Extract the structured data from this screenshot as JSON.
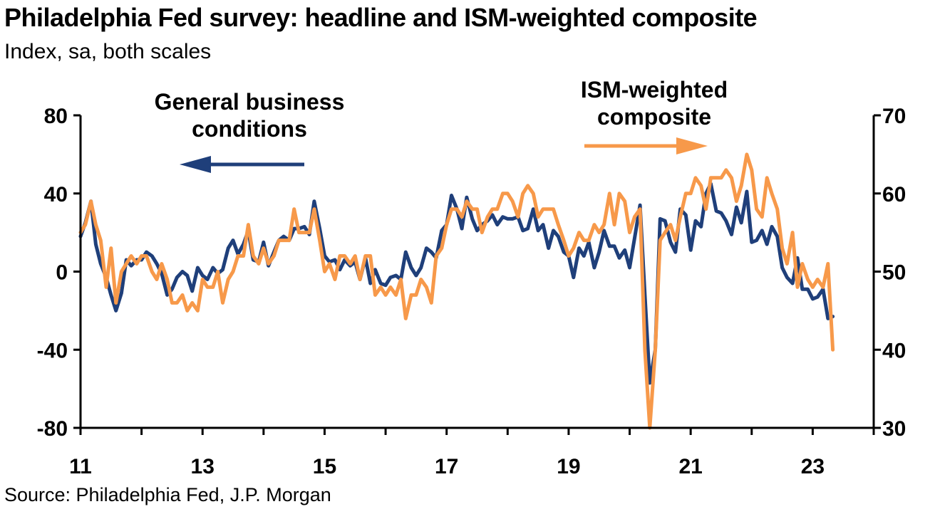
{
  "title": "Philadelphia Fed survey: headline and ISM-weighted composite",
  "subtitle": "Index, sa, both scales",
  "source": "Source: Philadelphia Fed, J.P. Morgan",
  "chart_data": {
    "type": "line",
    "x_unit": "year (20xx)",
    "x_ticks": [
      "11",
      "13",
      "15",
      "17",
      "19",
      "21",
      "23"
    ],
    "xlim": [
      2011,
      2024
    ],
    "y_left": {
      "lim": [
        -80,
        80
      ],
      "ticks": [
        "80",
        "40",
        "0",
        "-40",
        "-80"
      ]
    },
    "y_right": {
      "lim": [
        30,
        70
      ],
      "ticks": [
        "70",
        "60",
        "50",
        "40",
        "30"
      ]
    },
    "annotations": [
      {
        "text": [
          "General business",
          "conditions"
        ],
        "axis": "left"
      },
      {
        "text": [
          "ISM-weighted",
          "composite"
        ],
        "axis": "right"
      }
    ],
    "colors": {
      "general": "#1f3f7a",
      "ism": "#f7994a",
      "axis": "#000000"
    },
    "series": [
      {
        "name": "General business conditions",
        "axis": "left",
        "color": "#1f3f7a",
        "points": [
          [
            2011.0,
            18
          ],
          [
            2011.08,
            25
          ],
          [
            2011.17,
            36
          ],
          [
            2011.25,
            14
          ],
          [
            2011.33,
            4
          ],
          [
            2011.42,
            -3
          ],
          [
            2011.5,
            -12
          ],
          [
            2011.58,
            -20
          ],
          [
            2011.67,
            -11
          ],
          [
            2011.75,
            6
          ],
          [
            2011.83,
            3
          ],
          [
            2011.92,
            6
          ],
          [
            2012.0,
            6
          ],
          [
            2012.08,
            10
          ],
          [
            2012.17,
            8
          ],
          [
            2012.25,
            4
          ],
          [
            2012.33,
            -1
          ],
          [
            2012.42,
            -12
          ],
          [
            2012.5,
            -9
          ],
          [
            2012.58,
            -3
          ],
          [
            2012.67,
            0
          ],
          [
            2012.75,
            -2
          ],
          [
            2012.83,
            -10
          ],
          [
            2012.92,
            2
          ],
          [
            2013.0,
            -2
          ],
          [
            2013.08,
            -4
          ],
          [
            2013.17,
            2
          ],
          [
            2013.25,
            -1
          ],
          [
            2013.33,
            1
          ],
          [
            2013.42,
            12
          ],
          [
            2013.5,
            16
          ],
          [
            2013.58,
            9
          ],
          [
            2013.67,
            14
          ],
          [
            2013.75,
            21
          ],
          [
            2013.83,
            6
          ],
          [
            2013.92,
            5
          ],
          [
            2014.0,
            15
          ],
          [
            2014.08,
            3
          ],
          [
            2014.17,
            10
          ],
          [
            2014.25,
            16
          ],
          [
            2014.33,
            18
          ],
          [
            2014.42,
            16
          ],
          [
            2014.5,
            22
          ],
          [
            2014.58,
            22
          ],
          [
            2014.67,
            23
          ],
          [
            2014.75,
            19
          ],
          [
            2014.83,
            36
          ],
          [
            2014.92,
            22
          ],
          [
            2015.0,
            8
          ],
          [
            2015.08,
            5
          ],
          [
            2015.17,
            6
          ],
          [
            2015.25,
            1
          ],
          [
            2015.33,
            6
          ],
          [
            2015.42,
            3
          ],
          [
            2015.5,
            5
          ],
          [
            2015.58,
            -4
          ],
          [
            2015.67,
            7
          ],
          [
            2015.75,
            -6
          ],
          [
            2015.83,
            1
          ],
          [
            2015.92,
            -6
          ],
          [
            2016.0,
            -7
          ],
          [
            2016.08,
            -3
          ],
          [
            2016.17,
            -2
          ],
          [
            2016.25,
            -4
          ],
          [
            2016.33,
            10
          ],
          [
            2016.42,
            2
          ],
          [
            2016.5,
            -2
          ],
          [
            2016.58,
            2
          ],
          [
            2016.67,
            12
          ],
          [
            2016.75,
            10
          ],
          [
            2016.83,
            7
          ],
          [
            2016.92,
            21
          ],
          [
            2017.0,
            24
          ],
          [
            2017.08,
            39
          ],
          [
            2017.17,
            32
          ],
          [
            2017.25,
            22
          ],
          [
            2017.33,
            38
          ],
          [
            2017.42,
            27
          ],
          [
            2017.5,
            21
          ],
          [
            2017.58,
            24
          ],
          [
            2017.67,
            26
          ],
          [
            2017.75,
            29
          ],
          [
            2017.83,
            24
          ],
          [
            2017.92,
            28
          ],
          [
            2018.0,
            27
          ],
          [
            2018.08,
            27
          ],
          [
            2018.17,
            28
          ],
          [
            2018.25,
            21
          ],
          [
            2018.33,
            22
          ],
          [
            2018.42,
            32
          ],
          [
            2018.5,
            21
          ],
          [
            2018.58,
            24
          ],
          [
            2018.67,
            12
          ],
          [
            2018.75,
            21
          ],
          [
            2018.83,
            18
          ],
          [
            2018.92,
            10
          ],
          [
            2019.0,
            8
          ],
          [
            2019.08,
            -3
          ],
          [
            2019.17,
            12
          ],
          [
            2019.25,
            8
          ],
          [
            2019.33,
            15
          ],
          [
            2019.42,
            2
          ],
          [
            2019.5,
            10
          ],
          [
            2019.58,
            21
          ],
          [
            2019.67,
            13
          ],
          [
            2019.75,
            13
          ],
          [
            2019.83,
            7
          ],
          [
            2019.92,
            11
          ],
          [
            2020.0,
            2
          ],
          [
            2020.08,
            17
          ],
          [
            2020.17,
            34
          ],
          [
            2020.25,
            -12
          ],
          [
            2020.33,
            -57
          ],
          [
            2020.42,
            -40
          ],
          [
            2020.5,
            27
          ],
          [
            2020.58,
            26
          ],
          [
            2020.67,
            15
          ],
          [
            2020.75,
            10
          ],
          [
            2020.83,
            32
          ],
          [
            2020.92,
            29
          ],
          [
            2021.0,
            11
          ],
          [
            2021.08,
            26
          ],
          [
            2021.17,
            23
          ],
          [
            2021.25,
            40
          ],
          [
            2021.33,
            45
          ],
          [
            2021.42,
            31
          ],
          [
            2021.5,
            30
          ],
          [
            2021.58,
            26
          ],
          [
            2021.67,
            19
          ],
          [
            2021.75,
            33
          ],
          [
            2021.83,
            25
          ],
          [
            2021.92,
            41
          ],
          [
            2022.0,
            15
          ],
          [
            2022.08,
            16
          ],
          [
            2022.17,
            21
          ],
          [
            2022.25,
            14
          ],
          [
            2022.33,
            23
          ],
          [
            2022.42,
            18
          ],
          [
            2022.5,
            2
          ],
          [
            2022.58,
            -3
          ],
          [
            2022.67,
            -6
          ],
          [
            2022.75,
            7
          ],
          [
            2022.83,
            -9
          ],
          [
            2022.92,
            -9
          ],
          [
            2023.0,
            -14
          ],
          [
            2023.08,
            -13
          ],
          [
            2023.17,
            -9
          ],
          [
            2023.25,
            -24
          ],
          [
            2023.33,
            -23
          ]
        ]
      },
      {
        "name": "ISM-weighted composite",
        "axis": "right",
        "color": "#f7994a",
        "points": [
          [
            2011.0,
            55
          ],
          [
            2011.08,
            56
          ],
          [
            2011.17,
            59
          ],
          [
            2011.25,
            56
          ],
          [
            2011.33,
            54
          ],
          [
            2011.42,
            48
          ],
          [
            2011.5,
            53
          ],
          [
            2011.58,
            46
          ],
          [
            2011.67,
            50
          ],
          [
            2011.75,
            51
          ],
          [
            2011.83,
            52
          ],
          [
            2011.92,
            51
          ],
          [
            2012.0,
            52
          ],
          [
            2012.08,
            52
          ],
          [
            2012.17,
            50
          ],
          [
            2012.25,
            49
          ],
          [
            2012.33,
            51
          ],
          [
            2012.42,
            49
          ],
          [
            2012.5,
            46
          ],
          [
            2012.58,
            46
          ],
          [
            2012.67,
            47
          ],
          [
            2012.75,
            45
          ],
          [
            2012.83,
            46
          ],
          [
            2012.92,
            45
          ],
          [
            2013.0,
            49
          ],
          [
            2013.08,
            48
          ],
          [
            2013.17,
            48
          ],
          [
            2013.25,
            50
          ],
          [
            2013.33,
            46
          ],
          [
            2013.42,
            49
          ],
          [
            2013.5,
            50
          ],
          [
            2013.58,
            52
          ],
          [
            2013.67,
            52
          ],
          [
            2013.75,
            56
          ],
          [
            2013.83,
            52
          ],
          [
            2013.92,
            51
          ],
          [
            2014.0,
            53
          ],
          [
            2014.08,
            51
          ],
          [
            2014.17,
            52
          ],
          [
            2014.25,
            54
          ],
          [
            2014.33,
            54
          ],
          [
            2014.42,
            54
          ],
          [
            2014.5,
            58
          ],
          [
            2014.58,
            55
          ],
          [
            2014.67,
            55
          ],
          [
            2014.75,
            55
          ],
          [
            2014.83,
            58
          ],
          [
            2014.92,
            54
          ],
          [
            2015.0,
            50
          ],
          [
            2015.08,
            51
          ],
          [
            2015.17,
            49
          ],
          [
            2015.25,
            52
          ],
          [
            2015.33,
            52
          ],
          [
            2015.42,
            51
          ],
          [
            2015.5,
            52
          ],
          [
            2015.58,
            49
          ],
          [
            2015.67,
            52
          ],
          [
            2015.75,
            52
          ],
          [
            2015.83,
            47
          ],
          [
            2015.92,
            48
          ],
          [
            2016.0,
            47
          ],
          [
            2016.08,
            48
          ],
          [
            2016.17,
            47
          ],
          [
            2016.25,
            49
          ],
          [
            2016.33,
            44
          ],
          [
            2016.42,
            47
          ],
          [
            2016.5,
            47
          ],
          [
            2016.58,
            49
          ],
          [
            2016.67,
            48
          ],
          [
            2016.75,
            46
          ],
          [
            2016.83,
            52
          ],
          [
            2016.92,
            53
          ],
          [
            2017.0,
            56
          ],
          [
            2017.08,
            58
          ],
          [
            2017.17,
            58
          ],
          [
            2017.25,
            57
          ],
          [
            2017.33,
            59
          ],
          [
            2017.42,
            58
          ],
          [
            2017.5,
            58
          ],
          [
            2017.58,
            55
          ],
          [
            2017.67,
            57
          ],
          [
            2017.75,
            58
          ],
          [
            2017.83,
            58
          ],
          [
            2017.92,
            60
          ],
          [
            2018.0,
            60
          ],
          [
            2018.08,
            59
          ],
          [
            2018.17,
            57
          ],
          [
            2018.25,
            60
          ],
          [
            2018.33,
            61
          ],
          [
            2018.42,
            60
          ],
          [
            2018.5,
            57
          ],
          [
            2018.58,
            58
          ],
          [
            2018.67,
            58
          ],
          [
            2018.75,
            58
          ],
          [
            2018.83,
            56
          ],
          [
            2018.92,
            54
          ],
          [
            2019.0,
            52
          ],
          [
            2019.08,
            53
          ],
          [
            2019.17,
            55
          ],
          [
            2019.25,
            54
          ],
          [
            2019.33,
            54
          ],
          [
            2019.42,
            56
          ],
          [
            2019.5,
            55
          ],
          [
            2019.58,
            56
          ],
          [
            2019.67,
            60
          ],
          [
            2019.75,
            56
          ],
          [
            2019.83,
            60
          ],
          [
            2019.92,
            59
          ],
          [
            2020.0,
            55
          ],
          [
            2020.08,
            57
          ],
          [
            2020.17,
            58
          ],
          [
            2020.25,
            40
          ],
          [
            2020.33,
            30
          ],
          [
            2020.42,
            40
          ],
          [
            2020.5,
            54
          ],
          [
            2020.58,
            55
          ],
          [
            2020.67,
            56
          ],
          [
            2020.75,
            54
          ],
          [
            2020.83,
            57
          ],
          [
            2020.92,
            60
          ],
          [
            2021.0,
            60
          ],
          [
            2021.08,
            62
          ],
          [
            2021.17,
            61
          ],
          [
            2021.25,
            58
          ],
          [
            2021.33,
            62
          ],
          [
            2021.42,
            62
          ],
          [
            2021.5,
            62
          ],
          [
            2021.58,
            63
          ],
          [
            2021.67,
            62
          ],
          [
            2021.75,
            59
          ],
          [
            2021.83,
            61
          ],
          [
            2021.92,
            65
          ],
          [
            2022.0,
            63
          ],
          [
            2022.08,
            58
          ],
          [
            2022.17,
            57
          ],
          [
            2022.25,
            62
          ],
          [
            2022.33,
            60
          ],
          [
            2022.42,
            58
          ],
          [
            2022.5,
            53
          ],
          [
            2022.58,
            51
          ],
          [
            2022.67,
            55
          ],
          [
            2022.75,
            48
          ],
          [
            2022.83,
            51
          ],
          [
            2022.92,
            49
          ],
          [
            2023.0,
            48
          ],
          [
            2023.08,
            49
          ],
          [
            2023.17,
            48
          ],
          [
            2023.25,
            51
          ],
          [
            2023.33,
            40
          ]
        ]
      }
    ]
  }
}
